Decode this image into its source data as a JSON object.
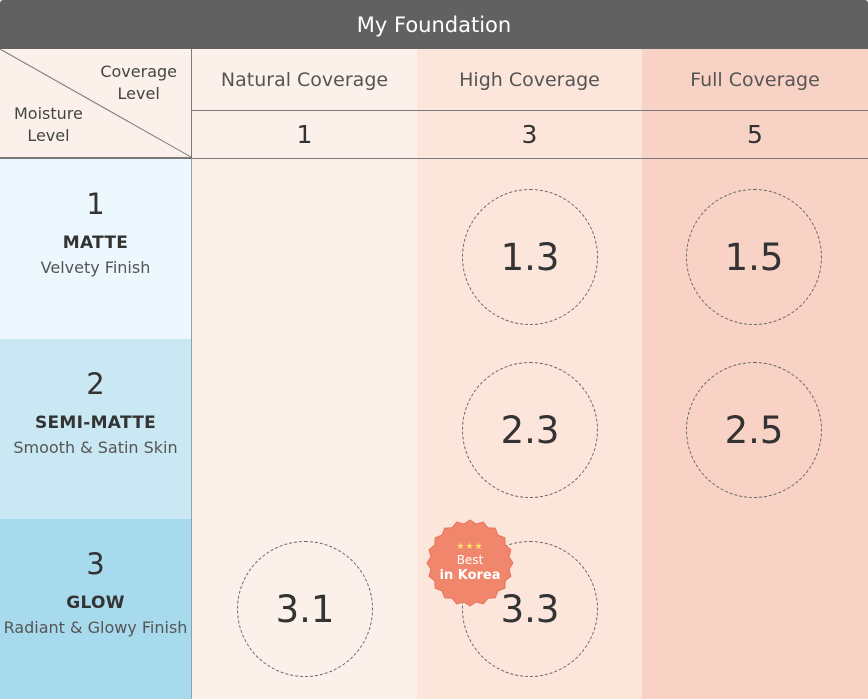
{
  "title": "My Foundation",
  "corner": {
    "coverage_line1": "Coverage",
    "coverage_line2": "Level",
    "moisture_line1": "Moisture",
    "moisture_line2": "Level"
  },
  "columns": [
    {
      "name": "Natural Coverage",
      "level": "1",
      "color": "#fbf1ea"
    },
    {
      "name": "High Coverage",
      "level": "3",
      "color": "#fce5da"
    },
    {
      "name": "Full Coverage",
      "level": "5",
      "color": "#f8d3c5"
    }
  ],
  "rows": [
    {
      "level": "1",
      "name": "MATTE",
      "desc": "Velvety Finish",
      "color": "#ecf8fd"
    },
    {
      "level": "2",
      "name": "SEMI-MATTE",
      "desc": "Smooth & Satin Skin",
      "color": "#c9e8f4"
    },
    {
      "level": "3",
      "name": "GLOW",
      "desc": "Radiant & Glowy Finish",
      "color": "#a8daed"
    }
  ],
  "products": {
    "p13": "1.3",
    "p15": "1.5",
    "p23": "2.3",
    "p25": "2.5",
    "p31": "3.1",
    "p33": "3.3"
  },
  "badge": {
    "stars": "★★★",
    "line1": "Best",
    "line2": "in Korea",
    "color": "#f0866c"
  }
}
